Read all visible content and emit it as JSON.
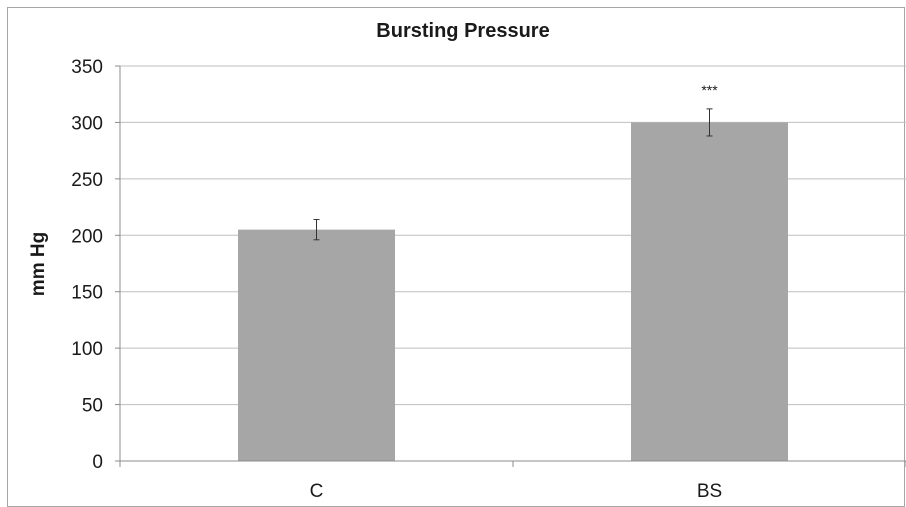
{
  "chart_data": {
    "type": "bar",
    "title": "Bursting Pressure",
    "xlabel": "",
    "ylabel": "mm Hg",
    "categories": [
      "C",
      "BS"
    ],
    "values": [
      205,
      300
    ],
    "error": [
      9,
      12
    ],
    "annotations": [
      "",
      "***"
    ],
    "ylim": [
      0,
      350
    ],
    "yticks": [
      0,
      50,
      100,
      150,
      200,
      250,
      300,
      350
    ],
    "grid": true,
    "bar_color": "#a6a6a6",
    "grid_color": "#bfbfbf",
    "axis_color": "#8c8c8c"
  }
}
